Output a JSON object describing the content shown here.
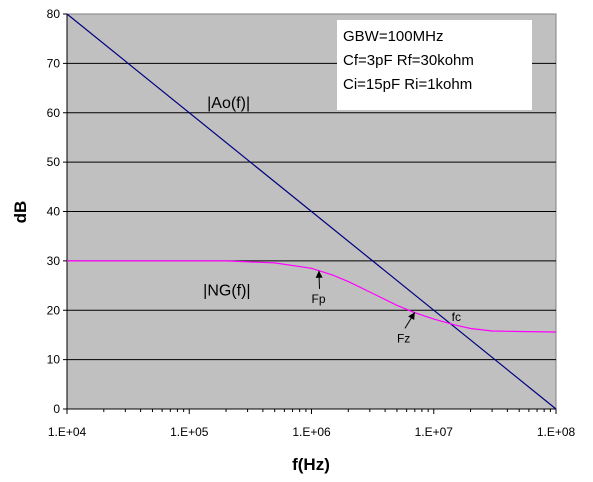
{
  "chart_data": {
    "type": "line",
    "title": "",
    "xlabel": "f(Hz)",
    "ylabel": "dB",
    "x_scale": "log",
    "xlim": [
      10000,
      100000000
    ],
    "ylim": [
      0,
      80
    ],
    "x_ticks": [
      "1.E+04",
      "1.E+05",
      "1.E+06",
      "1.E+07",
      "1.E+08"
    ],
    "x_tick_values": [
      10000,
      100000,
      1000000,
      10000000,
      100000000
    ],
    "y_ticks": [
      "0",
      "10",
      "20",
      "30",
      "40",
      "50",
      "60",
      "70",
      "80"
    ],
    "y_tick_values": [
      0,
      10,
      20,
      30,
      40,
      50,
      60,
      70,
      80
    ],
    "grid": "horizontal",
    "plot_background": "#c0c0c0",
    "series": [
      {
        "name": "|Ao(f)|",
        "color": "#000080",
        "x": [
          10000,
          100000000
        ],
        "y": [
          80,
          0
        ]
      },
      {
        "name": "|NG(f)|",
        "color": "#ff00ff",
        "x": [
          10000,
          200000,
          500000,
          1000000,
          1500000,
          2000000,
          3000000,
          5000000,
          7000000,
          10000000,
          15000000,
          20000000,
          30000000,
          50000000,
          100000000
        ],
        "y": [
          30,
          30,
          29.6,
          28.5,
          27.1,
          25.8,
          23.7,
          21.0,
          19.5,
          18.2,
          17.0,
          16.3,
          15.8,
          15.7,
          15.6
        ]
      }
    ],
    "series_labels": [
      {
        "text": "|Ao(f)|",
        "x": 140000,
        "y": 61
      },
      {
        "text": "|NG(f)|",
        "x": 130000,
        "y": 23
      }
    ],
    "annotations": [
      {
        "text": "Fp",
        "x": 1000000,
        "y": 21.5,
        "point_x": 1150000,
        "point_y": 28
      },
      {
        "text": "Fz",
        "x": 5000000,
        "y": 13.5,
        "point_x": 7000000,
        "point_y": 19.6
      },
      {
        "text": "fc",
        "x": 14000000,
        "y": 17.8
      }
    ],
    "info_box": [
      "GBW=100MHz",
      "Cf=3pF  Rf=30kohm",
      "Ci=15pF  Ri=1kohm"
    ]
  }
}
